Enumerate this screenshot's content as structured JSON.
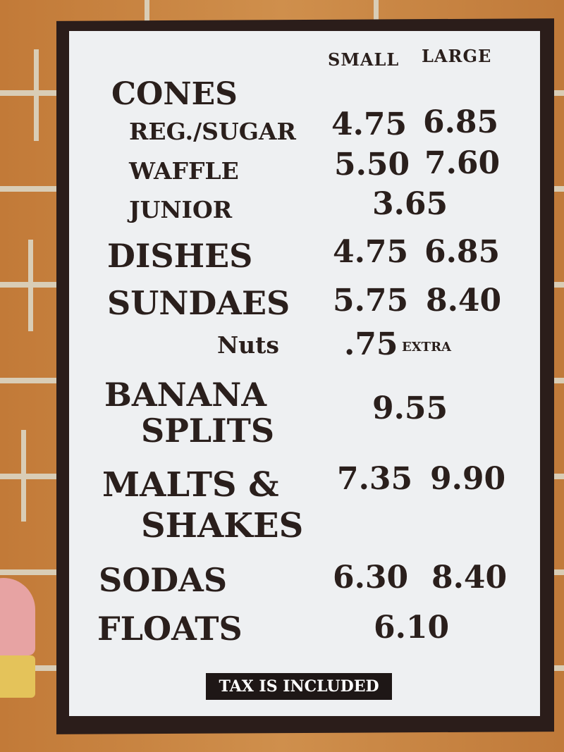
{
  "headers": {
    "small": "SMALL",
    "large": "LARGE"
  },
  "items": {
    "cones": {
      "label": "CONES"
    },
    "reg_sugar": {
      "label": "REG./SUGAR",
      "small": "4.75",
      "large": "6.85"
    },
    "waffle": {
      "label": "WAFFLE",
      "small": "5.50",
      "large": "7.60"
    },
    "junior": {
      "label": "JUNIOR",
      "price": "3.65"
    },
    "dishes": {
      "label": "DISHES",
      "small": "4.75",
      "large": "6.85"
    },
    "sundaes": {
      "label": "SUNDAES",
      "small": "5.75",
      "large": "8.40"
    },
    "nuts": {
      "label": "Nuts",
      "price": ".75",
      "note": "EXTRA"
    },
    "banana_splits": {
      "label1": "BANANA",
      "label2": "SPLITS",
      "price": "9.55"
    },
    "malts_shakes": {
      "label1": "MALTS &",
      "label2": "SHAKES",
      "small": "7.35",
      "large": "9.90"
    },
    "sodas": {
      "label": "SODAS",
      "small": "6.30",
      "large": "8.40"
    },
    "floats": {
      "label": "FLOATS",
      "price": "6.10"
    }
  },
  "footer": {
    "tax": "TAX IS INCLUDED"
  },
  "colors": {
    "text": "#2a1f1c",
    "frame": "#2b1d1a",
    "wall": "#c7833f",
    "panel": "#eef0f2"
  }
}
